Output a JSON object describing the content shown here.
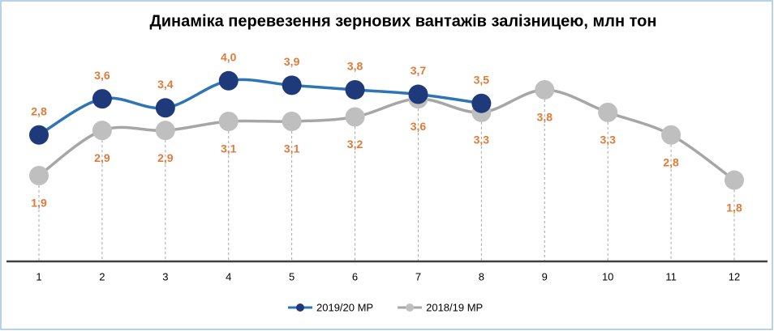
{
  "chart_data": {
    "type": "line",
    "title": "Динаміка перевезення зернових вантажів залізницею, млн тон",
    "categories": [
      "1",
      "2",
      "3",
      "4",
      "5",
      "6",
      "7",
      "8",
      "9",
      "10",
      "11",
      "12"
    ],
    "ylim": [
      0,
      5
    ],
    "series": [
      {
        "name": "2019/20 МР",
        "color": "#2e75b6",
        "marker_color": "#1f3a7a",
        "values": [
          2.8,
          3.6,
          3.4,
          4.0,
          3.9,
          3.8,
          3.7,
          3.5,
          null,
          null,
          null,
          null
        ],
        "value_labels": [
          "2,8",
          "3,6",
          "3,4",
          "4,0",
          "3,9",
          "3,8",
          "3,7",
          "3,5",
          null,
          null,
          null,
          null
        ]
      },
      {
        "name": "2018/19 МР",
        "color": "#a6a6a6",
        "marker_color": "#bfbfbf",
        "values": [
          1.9,
          2.9,
          2.9,
          3.1,
          3.1,
          3.2,
          3.6,
          3.3,
          3.8,
          3.3,
          2.8,
          1.8
        ],
        "value_labels": [
          "1,9",
          "2,9",
          "2,9",
          "3,1",
          "3,1",
          "3,2",
          "3,6",
          "3,3",
          "3,8",
          "3,3",
          "2,8",
          "1,8"
        ]
      }
    ],
    "label_color": "#e07b39",
    "legend": "bottom"
  }
}
